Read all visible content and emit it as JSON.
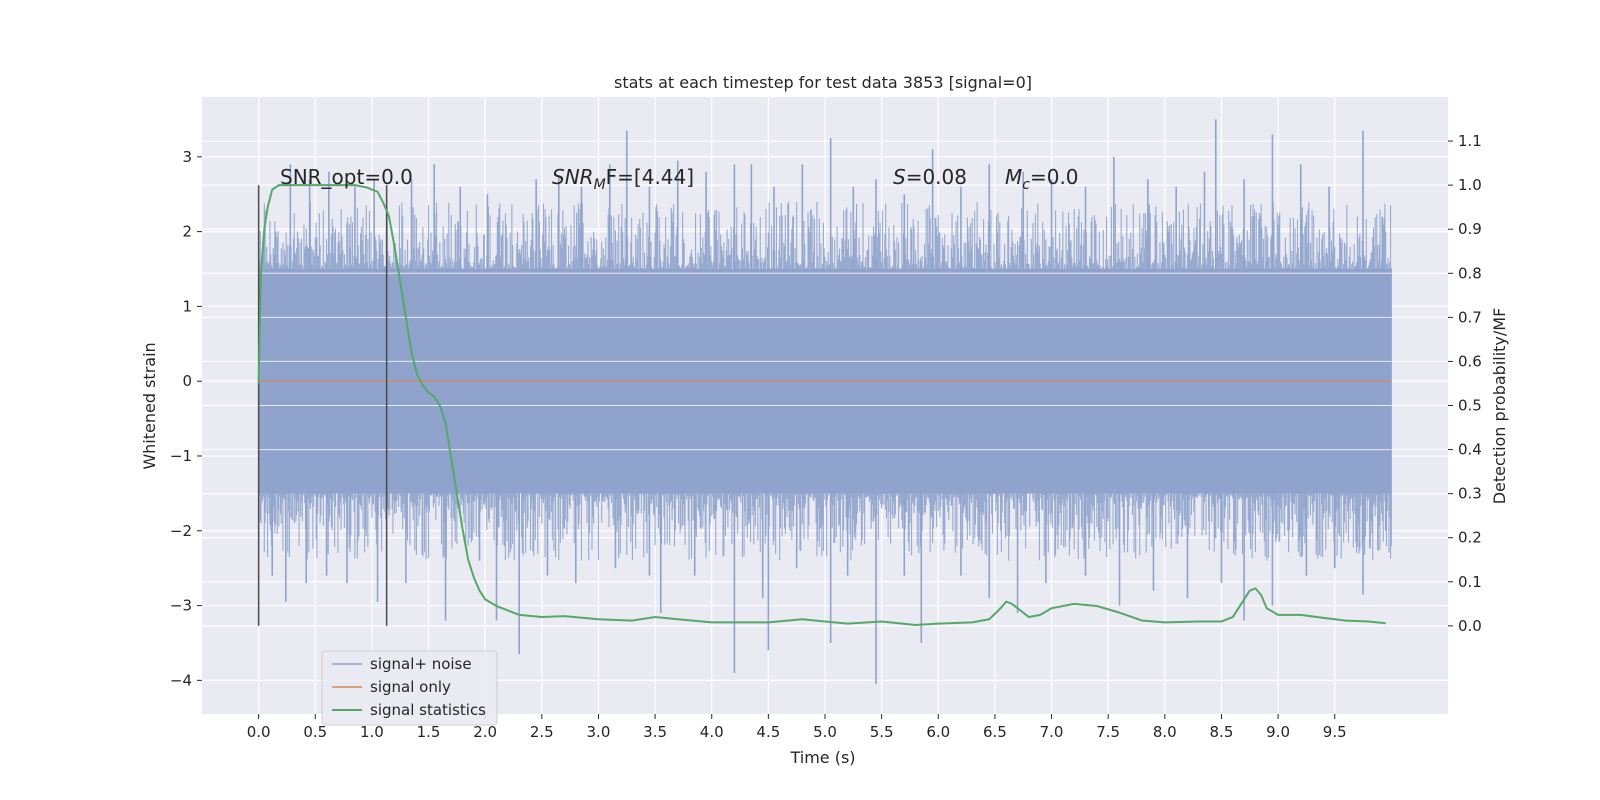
{
  "chart_data": {
    "type": "line",
    "title": "stats at each timestep for test data 3853 [signal=0]",
    "xlabel": "Time (s)",
    "ylabel_left": "Whitened strain",
    "ylabel_right": "Detection probability/MF",
    "xlim": [
      -0.5,
      10.5
    ],
    "ylim_left": [
      -4.45,
      3.8
    ],
    "ylim_right": [
      -0.2,
      1.2
    ],
    "x_ticks": [
      "0.0",
      "0.5",
      "1.0",
      "1.5",
      "2.0",
      "2.5",
      "3.0",
      "3.5",
      "4.0",
      "4.5",
      "5.0",
      "5.5",
      "6.0",
      "6.5",
      "7.0",
      "7.5",
      "8.0",
      "8.5",
      "9.0",
      "9.5"
    ],
    "y_left_ticks": [
      "3",
      "2",
      "1",
      "0",
      "−1",
      "−2",
      "−3",
      "−4"
    ],
    "y_right_ticks": [
      "1.1",
      "1.0",
      "0.9",
      "0.8",
      "0.7",
      "0.6",
      "0.5",
      "0.4",
      "0.3",
      "0.2",
      "0.1",
      "0.0"
    ],
    "grid": true,
    "legend_position": "lower-left",
    "colors": {
      "background": "#eaeaf2",
      "grid": "#ffffff",
      "noise": "#8fa3cc",
      "signal": "#dd8452",
      "stats": "#55a868",
      "vline": "#4a4a4a"
    },
    "annotations": {
      "snr_opt": "SNR_opt=0.0",
      "snr_mf_main": "SNR",
      "snr_mf_sub": "M",
      "snr_mf_rest": "F=[4.44]",
      "s_main": "S",
      "s_rest": "=0.08",
      "mc_main": "M",
      "mc_sub": "c",
      "mc_rest": "=0.0"
    },
    "vertical_lines_x": [
      0.0,
      1.13
    ],
    "series": [
      {
        "name": "signal+ noise",
        "x_range": [
          0.0,
          10.0
        ],
        "band_core": [
          -1.5,
          1.5
        ],
        "peaks": [
          [
            0.15,
            2.0
          ],
          [
            0.28,
            2.9
          ],
          [
            0.45,
            2.7
          ],
          [
            0.62,
            2.8
          ],
          [
            0.85,
            2.6
          ],
          [
            1.02,
            2.7
          ],
          [
            1.35,
            2.7
          ],
          [
            1.55,
            2.9
          ],
          [
            1.78,
            2.6
          ],
          [
            2.02,
            2.5
          ],
          [
            2.45,
            2.7
          ],
          [
            2.65,
            2.75
          ],
          [
            2.85,
            2.6
          ],
          [
            3.1,
            2.9
          ],
          [
            3.25,
            3.35
          ],
          [
            3.45,
            2.6
          ],
          [
            3.7,
            2.95
          ],
          [
            3.95,
            2.8
          ],
          [
            4.2,
            2.9
          ],
          [
            4.35,
            2.9
          ],
          [
            4.55,
            2.6
          ],
          [
            4.8,
            2.9
          ],
          [
            5.05,
            3.25
          ],
          [
            5.25,
            2.6
          ],
          [
            5.45,
            2.7
          ],
          [
            5.7,
            2.5
          ],
          [
            5.95,
            3.1
          ],
          [
            6.2,
            2.6
          ],
          [
            6.45,
            2.9
          ],
          [
            6.75,
            2.8
          ],
          [
            7.0,
            2.7
          ],
          [
            7.3,
            2.6
          ],
          [
            7.55,
            3.0
          ],
          [
            7.85,
            2.7
          ],
          [
            8.1,
            2.6
          ],
          [
            8.35,
            2.8
          ],
          [
            8.45,
            3.5
          ],
          [
            8.7,
            2.7
          ],
          [
            8.95,
            3.3
          ],
          [
            9.2,
            2.9
          ],
          [
            9.45,
            2.6
          ],
          [
            9.75,
            3.35
          ],
          [
            9.92,
            2.2
          ]
        ],
        "troughs": [
          [
            0.12,
            -2.6
          ],
          [
            0.24,
            -2.95
          ],
          [
            0.42,
            -2.7
          ],
          [
            0.6,
            -2.6
          ],
          [
            0.78,
            -2.7
          ],
          [
            1.05,
            -2.95
          ],
          [
            1.3,
            -2.7
          ],
          [
            1.65,
            -3.2
          ],
          [
            1.95,
            -2.4
          ],
          [
            2.1,
            -3.2
          ],
          [
            2.3,
            -3.65
          ],
          [
            2.55,
            -2.6
          ],
          [
            2.8,
            -2.7
          ],
          [
            3.15,
            -2.5
          ],
          [
            3.45,
            -2.6
          ],
          [
            3.55,
            -3.1
          ],
          [
            3.85,
            -2.6
          ],
          [
            4.2,
            -3.9
          ],
          [
            4.45,
            -2.9
          ],
          [
            4.5,
            -3.6
          ],
          [
            4.75,
            -2.5
          ],
          [
            5.05,
            -3.5
          ],
          [
            5.2,
            -2.6
          ],
          [
            5.45,
            -4.05
          ],
          [
            5.7,
            -2.6
          ],
          [
            5.85,
            -3.5
          ],
          [
            6.2,
            -2.6
          ],
          [
            6.45,
            -2.9
          ],
          [
            6.7,
            -3.1
          ],
          [
            6.95,
            -2.7
          ],
          [
            7.3,
            -2.6
          ],
          [
            7.6,
            -3.0
          ],
          [
            7.9,
            -2.8
          ],
          [
            8.2,
            -2.9
          ],
          [
            8.5,
            -2.7
          ],
          [
            8.7,
            -3.2
          ],
          [
            8.95,
            -3.0
          ],
          [
            9.25,
            -2.6
          ],
          [
            9.5,
            -2.5
          ],
          [
            9.75,
            -2.85
          ],
          [
            9.95,
            -2.0
          ]
        ]
      },
      {
        "name": "signal only",
        "x": [
          0.0,
          10.0
        ],
        "y": [
          0.0,
          0.0
        ]
      },
      {
        "name": "signal statistics",
        "x": [
          0.0,
          0.02,
          0.05,
          0.08,
          0.12,
          0.18,
          0.25,
          0.35,
          0.5,
          0.7,
          0.85,
          0.95,
          1.05,
          1.1,
          1.15,
          1.2,
          1.25,
          1.3,
          1.35,
          1.4,
          1.45,
          1.5,
          1.55,
          1.6,
          1.65,
          1.7,
          1.75,
          1.8,
          1.85,
          1.9,
          1.95,
          2.0,
          2.1,
          2.2,
          2.3,
          2.5,
          2.7,
          3.0,
          3.3,
          3.5,
          3.7,
          4.0,
          4.3,
          4.5,
          4.8,
          5.0,
          5.2,
          5.5,
          5.8,
          6.0,
          6.3,
          6.45,
          6.55,
          6.6,
          6.65,
          6.7,
          6.8,
          6.9,
          7.0,
          7.2,
          7.4,
          7.6,
          7.8,
          8.0,
          8.3,
          8.5,
          8.6,
          8.7,
          8.75,
          8.8,
          8.85,
          8.9,
          9.0,
          9.2,
          9.4,
          9.6,
          9.8,
          9.95
        ],
        "y": [
          0.55,
          0.8,
          0.9,
          0.95,
          0.99,
          1.0,
          1.0,
          1.0,
          1.0,
          1.0,
          1.0,
          0.995,
          0.985,
          0.96,
          0.93,
          0.86,
          0.78,
          0.7,
          0.62,
          0.57,
          0.545,
          0.53,
          0.52,
          0.5,
          0.46,
          0.38,
          0.3,
          0.22,
          0.15,
          0.11,
          0.08,
          0.06,
          0.045,
          0.035,
          0.025,
          0.02,
          0.022,
          0.015,
          0.012,
          0.02,
          0.015,
          0.008,
          0.008,
          0.008,
          0.015,
          0.01,
          0.005,
          0.01,
          0.002,
          0.005,
          0.008,
          0.015,
          0.04,
          0.055,
          0.05,
          0.04,
          0.02,
          0.025,
          0.04,
          0.05,
          0.045,
          0.03,
          0.012,
          0.008,
          0.01,
          0.01,
          0.02,
          0.06,
          0.08,
          0.085,
          0.07,
          0.04,
          0.025,
          0.025,
          0.018,
          0.012,
          0.01,
          0.006
        ]
      }
    ]
  }
}
